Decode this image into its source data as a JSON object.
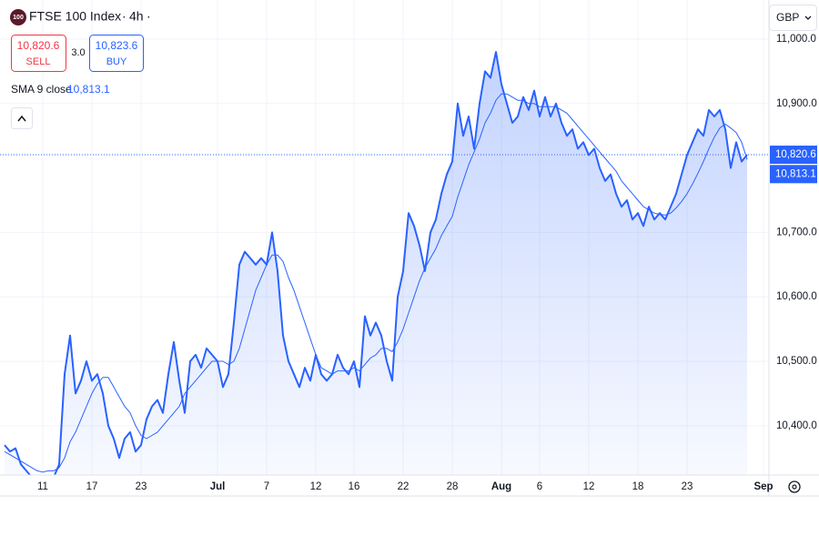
{
  "header": {
    "logo": "100",
    "interval": "4h",
    "sell_price": "10,820.6",
    "sell_label": "SELL",
    "spread": "3.0",
    "buy_price": "10,823.6",
    "buy_label": "BUY",
    "currency": "GBP"
  },
  "chart_data": {
    "type": "line",
    "categories": [
      null,
      null,
      null,
      null,
      null,
      null,
      null,
      "11",
      null,
      null,
      null,
      null,
      null,
      null,
      null,
      null,
      "17",
      null,
      null,
      null,
      null,
      null,
      null,
      null,
      null,
      "23",
      null,
      null,
      null,
      null,
      null,
      null,
      null,
      null,
      null,
      null,
      null,
      null,
      null,
      "Jul",
      null,
      null,
      null,
      null,
      null,
      null,
      null,
      null,
      "7",
      null,
      null,
      null,
      null,
      null,
      null,
      null,
      null,
      "12",
      null,
      null,
      null,
      null,
      null,
      null,
      "16",
      null,
      null,
      null,
      null,
      null,
      null,
      null,
      null,
      "22",
      null,
      null,
      null,
      null,
      null,
      null,
      null,
      null,
      "28",
      null,
      null,
      null,
      null,
      null,
      null,
      null,
      null,
      "Aug",
      null,
      null,
      null,
      null,
      null,
      null,
      "6",
      null,
      null,
      null,
      null,
      null,
      null,
      null,
      null,
      "12",
      null,
      null,
      null,
      null,
      null,
      null,
      null,
      null,
      "18",
      null,
      null,
      null,
      null,
      null,
      null,
      null,
      null,
      "23",
      null,
      null,
      null,
      null,
      null,
      null,
      null,
      null,
      null,
      null,
      null,
      null,
      null,
      "Sep"
    ],
    "series": [
      {
        "name": "FTSE 100 Index",
        "color": "#2962ff",
        "last_label": "10,820.6",
        "values": [
          10370,
          10360,
          10365,
          10340,
          10330,
          10320,
          10315,
          10310,
          10315,
          10320,
          10340,
          10480,
          10540,
          10450,
          10470,
          10500,
          10470,
          10480,
          10450,
          10400,
          10380,
          10350,
          10380,
          10390,
          10360,
          10370,
          10410,
          10430,
          10440,
          10420,
          10480,
          10530,
          10470,
          10420,
          10500,
          10510,
          10490,
          10520,
          10510,
          10500,
          10460,
          10480,
          10560,
          10650,
          10670,
          10660,
          10650,
          10660,
          10650,
          10700,
          10640,
          10540,
          10500,
          10480,
          10460,
          10490,
          10470,
          10510,
          10480,
          10470,
          10480,
          10510,
          10490,
          10480,
          10500,
          10460,
          10570,
          10540,
          10560,
          10540,
          10500,
          10470,
          10600,
          10640,
          10730,
          10710,
          10680,
          10640,
          10700,
          10720,
          10760,
          10790,
          10810,
          10900,
          10850,
          10880,
          10830,
          10900,
          10950,
          10940,
          10980,
          10930,
          10900,
          10870,
          10880,
          10910,
          10890,
          10920,
          10880,
          10910,
          10880,
          10900,
          10870,
          10850,
          10860,
          10830,
          10840,
          10820,
          10830,
          10800,
          10780,
          10790,
          10760,
          10740,
          10750,
          10720,
          10730,
          10710,
          10740,
          10720,
          10730,
          10720,
          10740,
          10760,
          10790,
          10820,
          10840,
          10860,
          10850,
          10890,
          10880,
          10890,
          10860,
          10800,
          10840,
          10810,
          10820.6,
          null,
          null,
          null
        ]
      },
      {
        "name": "SMA 9 close",
        "color": "#2962ff",
        "last_label": "10,813.1",
        "values": [
          10360,
          10355,
          10350,
          10345,
          10340,
          10335,
          10330,
          10328,
          10330,
          10330,
          10335,
          10350,
          10375,
          10390,
          10410,
          10430,
          10450,
          10465,
          10475,
          10475,
          10460,
          10445,
          10430,
          10420,
          10400,
          10385,
          10380,
          10385,
          10390,
          10400,
          10410,
          10420,
          10430,
          10450,
          10460,
          10470,
          10480,
          10490,
          10500,
          10500,
          10500,
          10495,
          10500,
          10520,
          10550,
          10580,
          10610,
          10630,
          10650,
          10665,
          10665,
          10655,
          10630,
          10610,
          10585,
          10560,
          10535,
          10510,
          10490,
          10485,
          10480,
          10485,
          10485,
          10485,
          10490,
          10485,
          10495,
          10505,
          10510,
          10520,
          10520,
          10515,
          10530,
          10550,
          10575,
          10600,
          10625,
          10645,
          10660,
          10675,
          10695,
          10710,
          10725,
          10755,
          10780,
          10805,
          10825,
          10845,
          10870,
          10885,
          10905,
          10915,
          10915,
          10910,
          10905,
          10905,
          10900,
          10900,
          10895,
          10895,
          10895,
          10895,
          10890,
          10885,
          10875,
          10865,
          10855,
          10845,
          10835,
          10825,
          10815,
          10805,
          10795,
          10780,
          10770,
          10760,
          10750,
          10740,
          10735,
          10730,
          10728,
          10727,
          10730,
          10738,
          10748,
          10760,
          10775,
          10792,
          10810,
          10830,
          10848,
          10862,
          10868,
          10862,
          10855,
          10840,
          10813.1,
          null,
          null,
          null
        ]
      }
    ],
    "ylim": [
      10323.5,
      11060.7
    ],
    "yticks": [
      {
        "value": 10400,
        "label": "10,400.0"
      },
      {
        "value": 10500,
        "label": "10,500.0"
      },
      {
        "value": 10600,
        "label": "10,600.0"
      },
      {
        "value": 10700,
        "label": "10,700.0"
      },
      {
        "value": 10900,
        "label": "10,900.0"
      },
      {
        "value": 11000,
        "label": "11,000.0"
      }
    ],
    "grid": true
  }
}
